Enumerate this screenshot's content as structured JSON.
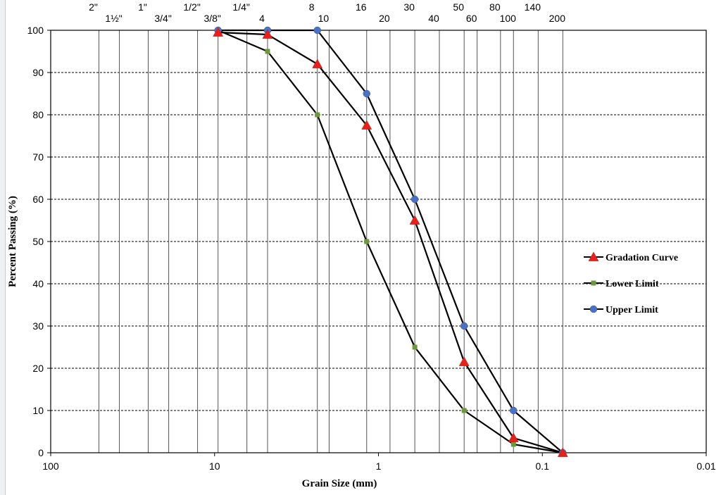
{
  "chart_data": {
    "type": "line",
    "xlabel": "Grain Size (mm)",
    "ylabel": "Percent Passing (%)",
    "x_scale": "log",
    "x_reversed": true,
    "xlim": [
      100,
      0.01
    ],
    "ylim": [
      0,
      100
    ],
    "x_ticks": [
      100,
      10,
      1,
      0.1,
      0.01
    ],
    "x_tick_labels": [
      "100",
      "10",
      "1",
      "0.1",
      "0.01"
    ],
    "y_ticks": [
      0,
      10,
      20,
      30,
      40,
      50,
      60,
      70,
      80,
      90,
      100
    ],
    "y_tick_labels": [
      "0",
      "10",
      "20",
      "30",
      "40",
      "50",
      "60",
      "70",
      "80",
      "90",
      "100"
    ],
    "horizontal_grid": "dashed",
    "vertical_grid": "sieve sizes",
    "sieves": [
      {
        "label": "2\"",
        "size": 50.8,
        "row": "top"
      },
      {
        "label": "1½\"",
        "size": 38.1,
        "row": "bottom"
      },
      {
        "label": "1\"",
        "size": 25.4,
        "row": "top"
      },
      {
        "label": "3/4\"",
        "size": 19.05,
        "row": "bottom"
      },
      {
        "label": "1/2\"",
        "size": 12.7,
        "row": "top"
      },
      {
        "label": "3/8\"",
        "size": 9.525,
        "row": "bottom"
      },
      {
        "label": "1/4\"",
        "size": 6.35,
        "row": "top"
      },
      {
        "label": "4",
        "size": 4.75,
        "row": "bottom"
      },
      {
        "label": "8",
        "size": 2.36,
        "row": "top"
      },
      {
        "label": "10",
        "size": 2.0,
        "row": "bottom"
      },
      {
        "label": "16",
        "size": 1.18,
        "row": "top"
      },
      {
        "label": "20",
        "size": 0.85,
        "row": "bottom"
      },
      {
        "label": "30",
        "size": 0.6,
        "row": "top"
      },
      {
        "label": "40",
        "size": 0.425,
        "row": "bottom"
      },
      {
        "label": "50",
        "size": 0.3,
        "row": "top"
      },
      {
        "label": "60",
        "size": 0.25,
        "row": "bottom"
      },
      {
        "label": "80",
        "size": 0.18,
        "row": "top"
      },
      {
        "label": "100",
        "size": 0.15,
        "row": "bottom"
      },
      {
        "label": "140",
        "size": 0.106,
        "row": "top"
      },
      {
        "label": "200",
        "size": 0.075,
        "row": "bottom"
      }
    ],
    "series": [
      {
        "name": "Gradation Curve",
        "marker": "triangle",
        "color": "#e8201a",
        "x": [
          9.525,
          4.75,
          2.36,
          1.18,
          0.6,
          0.3,
          0.15,
          0.075
        ],
        "y": [
          99.5,
          99,
          92,
          77.5,
          55,
          21.5,
          3.5,
          0
        ]
      },
      {
        "name": "Lower Limit",
        "marker": "square",
        "color": "#6b9a3a",
        "x": [
          9.525,
          4.75,
          2.36,
          1.18,
          0.6,
          0.3,
          0.15,
          0.075
        ],
        "y": [
          100,
          95,
          80,
          50,
          25,
          10,
          2,
          0
        ]
      },
      {
        "name": "Upper Limit",
        "marker": "circle",
        "color": "#4a72c4",
        "x": [
          9.525,
          4.75,
          2.36,
          1.18,
          0.6,
          0.3,
          0.15,
          0.075
        ],
        "y": [
          100,
          100,
          100,
          85,
          60,
          30,
          10,
          0
        ]
      }
    ],
    "legend_position": "right-middle",
    "line_color": "#000000"
  }
}
